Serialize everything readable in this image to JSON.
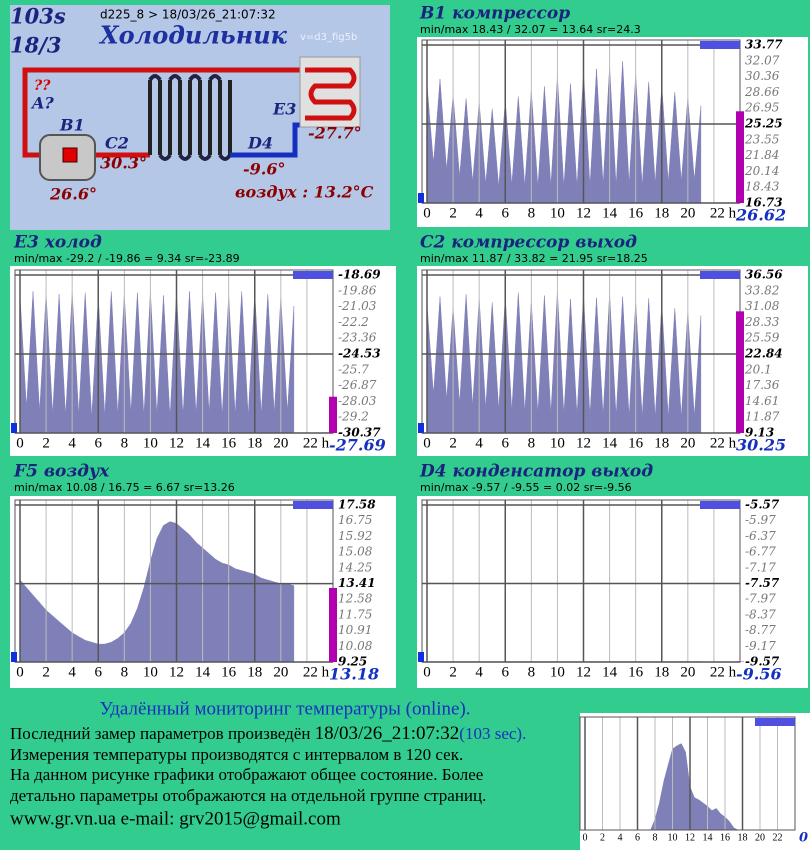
{
  "diagram": {
    "seconds": "103s",
    "date": "18/3",
    "header": "d225_8  >  18/03/26_21:07:32",
    "title": "Холодильник",
    "version": "v=d3_fig5b",
    "unknown": "??",
    "label_a": "A?",
    "label_b1": "B1",
    "value_b1": "26.6°",
    "label_c2": "C2",
    "value_c2": "30.3°",
    "label_d4": "D4",
    "value_d4": "-9.6°",
    "label_e3": "E3",
    "value_e3": "-27.7°",
    "air": "воздух : 13.2°C"
  },
  "chart_data": [
    {
      "type": "area",
      "title": "B1 компрессор",
      "minmax": "min/max  18.43 / 32.07 = 13.64     sr=24.3",
      "current": 26.62,
      "color": "#8080b8",
      "x": [
        0,
        0.5,
        1,
        1.5,
        2,
        2.5,
        3,
        3.5,
        4,
        4.5,
        5,
        5.5,
        6,
        6.5,
        7,
        7.5,
        8,
        8.5,
        9,
        9.5,
        10,
        10.5,
        11,
        11.5,
        12,
        12.5,
        13,
        13.5,
        14,
        14.5,
        15,
        15.5,
        16,
        16.5,
        17,
        17.5,
        18,
        18.5,
        19,
        19.5,
        20,
        20.5,
        21
      ],
      "values": [
        29.5,
        21.0,
        30.1,
        20.3,
        28.4,
        19.6,
        28.0,
        19.0,
        27.6,
        18.8,
        26.9,
        18.5,
        27.8,
        18.7,
        28.2,
        18.6,
        28.9,
        18.5,
        29.3,
        18.6,
        30.4,
        18.5,
        29.6,
        18.5,
        30.8,
        18.6,
        31.2,
        18.7,
        31.5,
        18.6,
        32.0,
        18.8,
        30.6,
        18.6,
        29.8,
        18.9,
        29.4,
        19.0,
        28.7,
        19.1,
        28.1,
        19.2,
        27.2
      ],
      "xlim": [
        0,
        24
      ],
      "ylim": [
        16.73,
        33.77
      ],
      "xticks": [
        0,
        2,
        4,
        6,
        8,
        10,
        12,
        14,
        16,
        18,
        20,
        {
          "value": 22,
          "label": "22 h"
        }
      ],
      "yticks": [
        33.77,
        32.07,
        30.36,
        28.66,
        26.95,
        25.25,
        23.55,
        21.84,
        20.14,
        18.43,
        16.73
      ]
    },
    {
      "type": "area",
      "title": "E3 холод",
      "minmax": "min/max   -29.2 / -19.86 = 9.34     sr=-23.89",
      "current": -27.69,
      "color": "#8080b8",
      "x": [
        0,
        0.5,
        1,
        1.5,
        2,
        2.5,
        3,
        3.5,
        4,
        4.5,
        5,
        5.5,
        6,
        6.5,
        7,
        7.5,
        8,
        8.5,
        9,
        9.5,
        10,
        10.5,
        11,
        11.5,
        12,
        12.5,
        13,
        13.5,
        14,
        14.5,
        15,
        15.5,
        16,
        16.5,
        17,
        17.5,
        18,
        18.5,
        19,
        19.5,
        20,
        20.5,
        21
      ],
      "values": [
        -20.2,
        -28.5,
        -19.9,
        -28.8,
        -20.0,
        -29.0,
        -20.1,
        -29.1,
        -19.9,
        -29.0,
        -20.0,
        -29.2,
        -20.3,
        -29.1,
        -19.9,
        -29.0,
        -20.1,
        -28.9,
        -20.0,
        -29.1,
        -19.9,
        -29.0,
        -20.2,
        -29.2,
        -20.0,
        -29.1,
        -19.9,
        -29.0,
        -20.1,
        -28.9,
        -20.0,
        -29.1,
        -20.2,
        -29.0,
        -19.9,
        -29.1,
        -20.0,
        -29.0,
        -20.1,
        -28.9,
        -20.3,
        -28.8,
        -21.0
      ],
      "xlim": [
        0,
        24
      ],
      "ylim": [
        -30.37,
        -18.69
      ],
      "xticks": [
        0,
        2,
        4,
        6,
        8,
        10,
        12,
        14,
        16,
        18,
        20,
        {
          "value": 22,
          "label": "22 h"
        }
      ],
      "yticks": [
        -18.69,
        -19.86,
        -21.03,
        -22.2,
        -23.36,
        -24.53,
        -25.7,
        -26.87,
        -28.03,
        -29.2,
        -30.37
      ]
    },
    {
      "type": "area",
      "title": "C2 компрессор выход",
      "minmax": "min/max   11.87 / 33.82 = 21.95     sr=18.25",
      "current": 30.25,
      "color": "#8080b8",
      "x": [
        0,
        0.5,
        1,
        1.5,
        2,
        2.5,
        3,
        3.5,
        4,
        4.5,
        5,
        5.5,
        6,
        6.5,
        7,
        7.5,
        8,
        8.5,
        9,
        9.5,
        10,
        10.5,
        11,
        11.5,
        12,
        12.5,
        13,
        13.5,
        14,
        14.5,
        15,
        15.5,
        16,
        16.5,
        17,
        17.5,
        18,
        18.5,
        19,
        19.5,
        20,
        20.5,
        21
      ],
      "values": [
        31.5,
        15.8,
        32.8,
        14.9,
        31.0,
        14.2,
        33.2,
        13.8,
        32.5,
        13.5,
        31.8,
        13.2,
        32.9,
        13.0,
        33.5,
        12.8,
        32.0,
        12.6,
        33.0,
        12.5,
        33.8,
        12.4,
        32.4,
        12.3,
        33.1,
        12.2,
        32.6,
        12.2,
        33.4,
        12.1,
        32.8,
        12.0,
        31.9,
        12.0,
        32.5,
        11.9,
        31.6,
        11.9,
        30.8,
        11.9,
        30.2,
        12.0,
        29.5
      ],
      "xlim": [
        0,
        24
      ],
      "ylim": [
        9.13,
        36.56
      ],
      "xticks": [
        0,
        2,
        4,
        6,
        8,
        10,
        12,
        14,
        16,
        18,
        20,
        {
          "value": 22,
          "label": "22 h"
        }
      ],
      "yticks": [
        36.56,
        33.82,
        31.08,
        28.33,
        25.59,
        22.84,
        20.1,
        17.36,
        14.61,
        11.87,
        9.13
      ]
    },
    {
      "type": "area",
      "title": "F5 воздух",
      "minmax": "min/max   10.08 / 16.75 = 6.67     sr=13.26",
      "current": 13.18,
      "color": "#8080b8",
      "x": [
        0,
        0.5,
        1,
        1.5,
        2,
        2.5,
        3,
        3.5,
        4,
        4.5,
        5,
        5.5,
        6,
        6.5,
        7,
        7.5,
        8,
        8.5,
        9,
        9.5,
        10,
        10.5,
        11,
        11.5,
        12,
        12.5,
        13,
        13.5,
        14,
        14.5,
        15,
        15.5,
        16,
        16.5,
        17,
        17.5,
        18,
        18.5,
        19,
        19.5,
        20,
        20.5,
        21
      ],
      "values": [
        13.6,
        13.2,
        12.8,
        12.4,
        12.0,
        11.7,
        11.4,
        11.1,
        10.8,
        10.6,
        10.4,
        10.3,
        10.2,
        10.2,
        10.3,
        10.5,
        10.8,
        11.3,
        12.1,
        13.2,
        14.6,
        15.8,
        16.5,
        16.7,
        16.6,
        16.3,
        16.0,
        15.6,
        15.3,
        15.0,
        14.7,
        14.5,
        14.4,
        14.2,
        14.1,
        14.0,
        13.9,
        13.7,
        13.6,
        13.5,
        13.4,
        13.4,
        13.3
      ],
      "xlim": [
        0,
        24
      ],
      "ylim": [
        9.25,
        17.58
      ],
      "xticks": [
        0,
        2,
        4,
        6,
        8,
        10,
        12,
        14,
        16,
        18,
        20,
        {
          "value": 22,
          "label": "22 h"
        }
      ],
      "yticks": [
        17.58,
        16.75,
        15.92,
        15.08,
        14.25,
        13.41,
        12.58,
        11.75,
        10.91,
        10.08,
        9.25
      ]
    },
    {
      "type": "area",
      "title": "D4 конденсатор выход",
      "minmax": "min/max   -9.57 / -9.55 = 0.02     sr=-9.56",
      "current": -9.56,
      "color": "#8080b8",
      "x": [
        0,
        0.5,
        1,
        1.5,
        2,
        2.5,
        3,
        3.5,
        4,
        4.5,
        5,
        5.5,
        6,
        6.5,
        7,
        7.5,
        8,
        8.5,
        9,
        9.5,
        10,
        10.5,
        11,
        11.5,
        12,
        12.5,
        13,
        13.5,
        14,
        14.5,
        15,
        15.5,
        16,
        16.5,
        17,
        17.5,
        18,
        18.5,
        19,
        19.5,
        20,
        20.5,
        21
      ],
      "values": [
        -9.56,
        -9.56,
        -9.56,
        -9.56,
        -9.56,
        -9.56,
        -9.56,
        -9.56,
        -9.56,
        -9.56,
        -9.56,
        -9.56,
        -9.56,
        -9.56,
        -9.56,
        -9.56,
        -9.56,
        -9.56,
        -9.56,
        -9.56,
        -9.56,
        -9.56,
        -9.56,
        -9.56,
        -9.56,
        -9.56,
        -9.56,
        -9.56,
        -9.56,
        -9.56,
        -9.56,
        -9.56,
        -9.56,
        -9.56,
        -9.56,
        -9.56,
        -9.56,
        -9.56,
        -9.56,
        -9.56,
        -9.56,
        -9.56,
        -9.56
      ],
      "xlim": [
        0,
        24
      ],
      "ylim": [
        -9.57,
        -5.57
      ],
      "xticks": [
        0,
        2,
        4,
        6,
        8,
        10,
        12,
        14,
        16,
        18,
        20,
        {
          "value": 22,
          "label": "22 h"
        }
      ],
      "yticks": [
        -5.57,
        -5.97,
        -6.37,
        -6.77,
        -7.17,
        -7.57,
        -7.97,
        -8.37,
        -8.77,
        -9.17,
        -9.57
      ]
    },
    {
      "type": "area",
      "current": 0,
      "color": "#8080b8",
      "x": [
        0,
        0.5,
        1,
        1.5,
        2,
        2.5,
        3,
        3.5,
        4,
        4.5,
        5,
        5.5,
        6,
        6.5,
        7,
        7.5,
        8,
        8.5,
        9,
        9.5,
        10,
        10.5,
        11,
        11.5,
        12,
        12.5,
        13,
        13.5,
        14,
        14.5,
        15,
        15.5,
        16,
        16.5,
        17,
        17.5,
        18,
        18.5,
        19,
        19.5,
        20,
        20.5,
        21
      ],
      "values": [
        0,
        0,
        0,
        0,
        0,
        0,
        0,
        0,
        0,
        0,
        0,
        0,
        0,
        0,
        0,
        0,
        10,
        25,
        45,
        60,
        75,
        78,
        80,
        72,
        40,
        30,
        28,
        25,
        22,
        18,
        20,
        15,
        12,
        8,
        2,
        0,
        0,
        0,
        0,
        0,
        0,
        0,
        0
      ],
      "xlim": [
        0,
        24
      ],
      "ylim": [
        0,
        100
      ],
      "xticks": [
        0,
        2,
        4,
        6,
        8,
        10,
        12,
        14,
        16,
        18,
        20,
        22
      ]
    }
  ],
  "footer": {
    "heading": "Удалённый мониторинг температуры (online).",
    "line1": "Последний замер параметров произведён ",
    "line1_time": "18/03/26_21:07:32",
    "line1_sec": "(103 sec).",
    "line2": "Измерения температуры  производятся с интервалом в 120 сек.",
    "line3": "На данном рисунке графики отображают общее состояние. Более",
    "line4": "детально параметры отображаются на отдельной группе страниц.",
    "contacts": "www.gr.vn.ua     e-mail: grv2015@gmail.com"
  }
}
